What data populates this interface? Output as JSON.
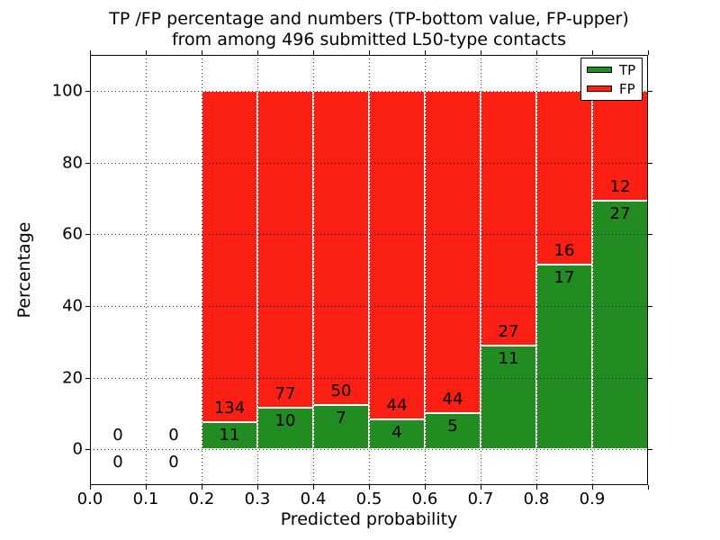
{
  "chart_data": {
    "type": "bar",
    "stacked": true,
    "normalized_to_percent": true,
    "title_lines": [
      "TP /FP percentage and numbers (TP-bottom value, FP-upper)",
      "from among 496 submitted L50-type contacts"
    ],
    "xlabel": "Predicted probability",
    "ylabel": "Percentage",
    "xlim": [
      0.0,
      1.0
    ],
    "ylim": [
      -10,
      110
    ],
    "grid": "dotted",
    "total_contacts": 496,
    "legend": {
      "position": "upper right",
      "items": [
        {
          "label": "TP",
          "color": "#228b22"
        },
        {
          "label": "FP",
          "color": "#fb1f14"
        }
      ]
    },
    "x_ticks": [
      {
        "value": 0.0,
        "label": "0.0"
      },
      {
        "value": 0.1,
        "label": "0.1"
      },
      {
        "value": 0.2,
        "label": "0.2"
      },
      {
        "value": 0.3,
        "label": "0.3"
      },
      {
        "value": 0.4,
        "label": "0.4"
      },
      {
        "value": 0.5,
        "label": "0.5"
      },
      {
        "value": 0.6,
        "label": "0.6"
      },
      {
        "value": 0.7,
        "label": "0.7"
      },
      {
        "value": 0.8,
        "label": "0.8"
      },
      {
        "value": 0.9,
        "label": "0.9"
      },
      {
        "value": 1.0,
        "label": ""
      }
    ],
    "y_ticks": [
      {
        "value": 0,
        "label": "0"
      },
      {
        "value": 20,
        "label": "20"
      },
      {
        "value": 40,
        "label": "40"
      },
      {
        "value": 60,
        "label": "60"
      },
      {
        "value": 80,
        "label": "80"
      },
      {
        "value": 100,
        "label": "100"
      }
    ],
    "bins": [
      {
        "x0": 0.0,
        "x1": 0.1,
        "tp": 0,
        "fp": 0,
        "tp_pct": null
      },
      {
        "x0": 0.1,
        "x1": 0.2,
        "tp": 0,
        "fp": 0,
        "tp_pct": null
      },
      {
        "x0": 0.2,
        "x1": 0.3,
        "tp": 11,
        "fp": 134,
        "tp_pct": 7.6
      },
      {
        "x0": 0.3,
        "x1": 0.4,
        "tp": 10,
        "fp": 77,
        "tp_pct": 11.5
      },
      {
        "x0": 0.4,
        "x1": 0.5,
        "tp": 7,
        "fp": 50,
        "tp_pct": 12.3
      },
      {
        "x0": 0.5,
        "x1": 0.6,
        "tp": 4,
        "fp": 44,
        "tp_pct": 8.3
      },
      {
        "x0": 0.6,
        "x1": 0.7,
        "tp": 5,
        "fp": 44,
        "tp_pct": 10.2
      },
      {
        "x0": 0.7,
        "x1": 0.8,
        "tp": 11,
        "fp": 27,
        "tp_pct": 28.9
      },
      {
        "x0": 0.8,
        "x1": 0.9,
        "tp": 17,
        "fp": 16,
        "tp_pct": 51.5
      },
      {
        "x0": 0.9,
        "x1": 1.0,
        "tp": 27,
        "fp": 12,
        "tp_pct": 69.2
      }
    ],
    "colors": {
      "tp": "#228b22",
      "fp": "#fb1f14",
      "bar_edge": "#ffffff",
      "grid": "#000000",
      "text": "#000000"
    }
  }
}
